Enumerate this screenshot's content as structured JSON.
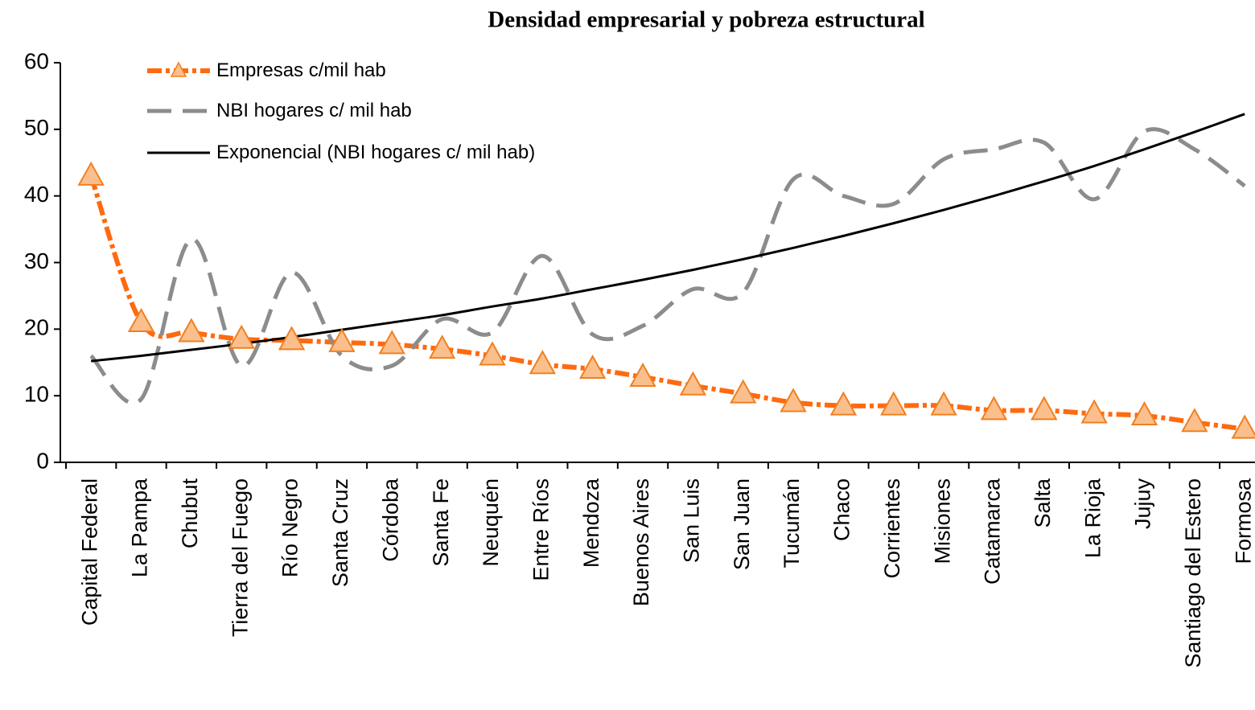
{
  "chart_data": {
    "type": "line",
    "title": "Densidad empresarial y pobreza estructural",
    "categories": [
      "Capital Federal",
      "La Pampa",
      "Chubut",
      "Tierra del Fuego",
      "Río Negro",
      "Santa Cruz",
      "Córdoba",
      "Santa Fe",
      "Neuquén",
      "Entre Ríos",
      "Mendoza",
      "Buenos Aires",
      "San Luis",
      "San Juan",
      "Tucumán",
      "Chaco",
      "Corrientes",
      "Misiones",
      "Catamarca",
      "Salta",
      "La Rioja",
      "Jujuy",
      "Santiago del Estero",
      "Formosa"
    ],
    "series": [
      {
        "name": "Empresas c/mil hab",
        "color": "#ff6a10",
        "line_style": "dash-dot",
        "marker": "triangle",
        "values": [
          43,
          21,
          19.5,
          18.5,
          18.3,
          18,
          17.7,
          17,
          16,
          14.7,
          14,
          12.8,
          11.5,
          10.3,
          9,
          8.5,
          8.5,
          8.5,
          7.8,
          7.8,
          7.3,
          7,
          6,
          5
        ]
      },
      {
        "name": "NBI hogares c/ mil hab",
        "color": "#8c8c8c",
        "line_style": "dash",
        "marker": "none",
        "values": [
          16,
          9.5,
          33.5,
          14.5,
          28.5,
          16,
          14.5,
          21.5,
          19.5,
          31,
          19.2,
          20.5,
          26,
          25.5,
          42.5,
          40,
          38.8,
          45.5,
          47,
          48,
          39.5,
          49.7,
          47,
          41.5
        ]
      },
      {
        "name": "Exponencial (NBI hogares c/ mil hab)",
        "color": "#000000",
        "line_style": "solid",
        "marker": "none",
        "values": [
          15.2,
          16.0,
          16.9,
          17.8,
          18.8,
          19.9,
          21.0,
          22.1,
          23.4,
          24.6,
          26.0,
          27.4,
          28.9,
          30.5,
          32.2,
          34.0,
          35.9,
          37.9,
          40.0,
          42.2,
          44.5,
          47.0,
          49.6,
          52.3
        ]
      }
    ],
    "ylim": [
      0,
      60
    ],
    "yticks": [
      0,
      10,
      20,
      30,
      40,
      50,
      60
    ],
    "grid": false,
    "legend": "top-left"
  }
}
